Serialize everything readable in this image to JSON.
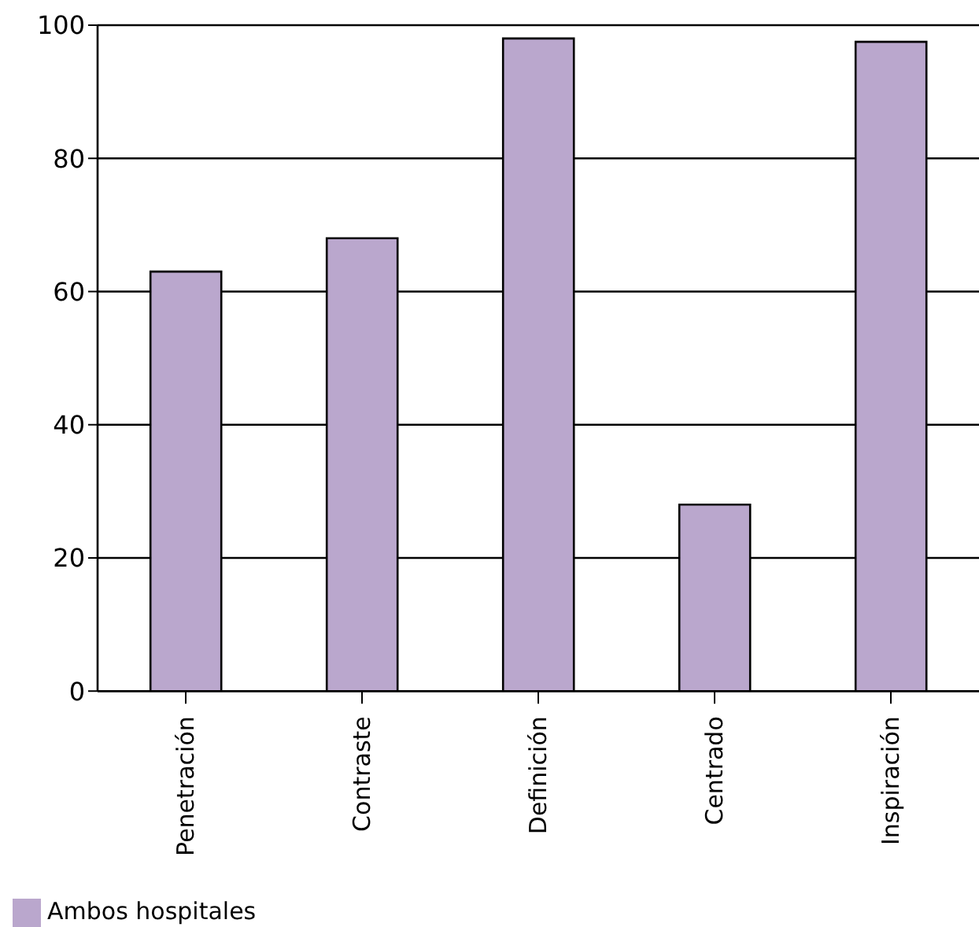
{
  "chart_data": {
    "type": "bar",
    "categories": [
      "Penetración",
      "Contraste",
      "Definición",
      "Centrado",
      "Inspiración"
    ],
    "series": [
      {
        "name": "Ambos hospitales",
        "color": "#baa7cd",
        "values": [
          63,
          68,
          98,
          28,
          97.5
        ]
      }
    ],
    "ylim": [
      0,
      100
    ],
    "yticks": [
      0,
      20,
      40,
      60,
      80,
      100
    ],
    "grid": "y",
    "legend": "bottom left"
  }
}
